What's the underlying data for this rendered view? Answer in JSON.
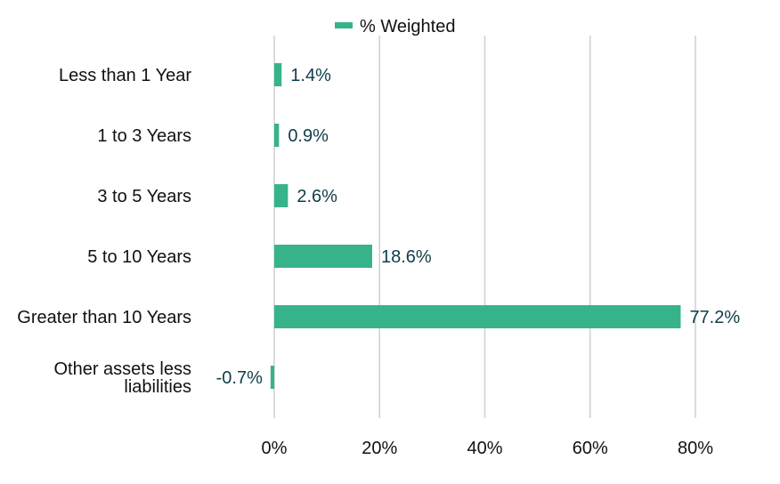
{
  "chart_data": {
    "type": "bar",
    "orientation": "horizontal",
    "categories": [
      "Less than 1 Year",
      "1 to 3 Years",
      "3 to 5 Years",
      "5 to 10 Years",
      "Greater than 10 Years",
      "Other assets less liabilities"
    ],
    "series": [
      {
        "name": "% Weighted",
        "values": [
          1.4,
          0.9,
          2.6,
          18.6,
          77.2,
          -0.7
        ],
        "labels": [
          "1.4%",
          "0.9%",
          "2.6%",
          "18.6%",
          "77.2%",
          "-0.7%"
        ],
        "color": "#37b38b"
      }
    ],
    "xlim": [
      -12,
      90
    ],
    "xticks": [
      0,
      20,
      40,
      60,
      80
    ],
    "xtick_labels": [
      "0%",
      "20%",
      "40%",
      "60%",
      "80%"
    ],
    "grid": "vertical",
    "legend_position": "top-center",
    "title": "",
    "xlabel": "",
    "ylabel": ""
  },
  "colors": {
    "bar": "#37b38b",
    "value_label": "#0f3d4a",
    "grid": "#d0d0d0"
  }
}
